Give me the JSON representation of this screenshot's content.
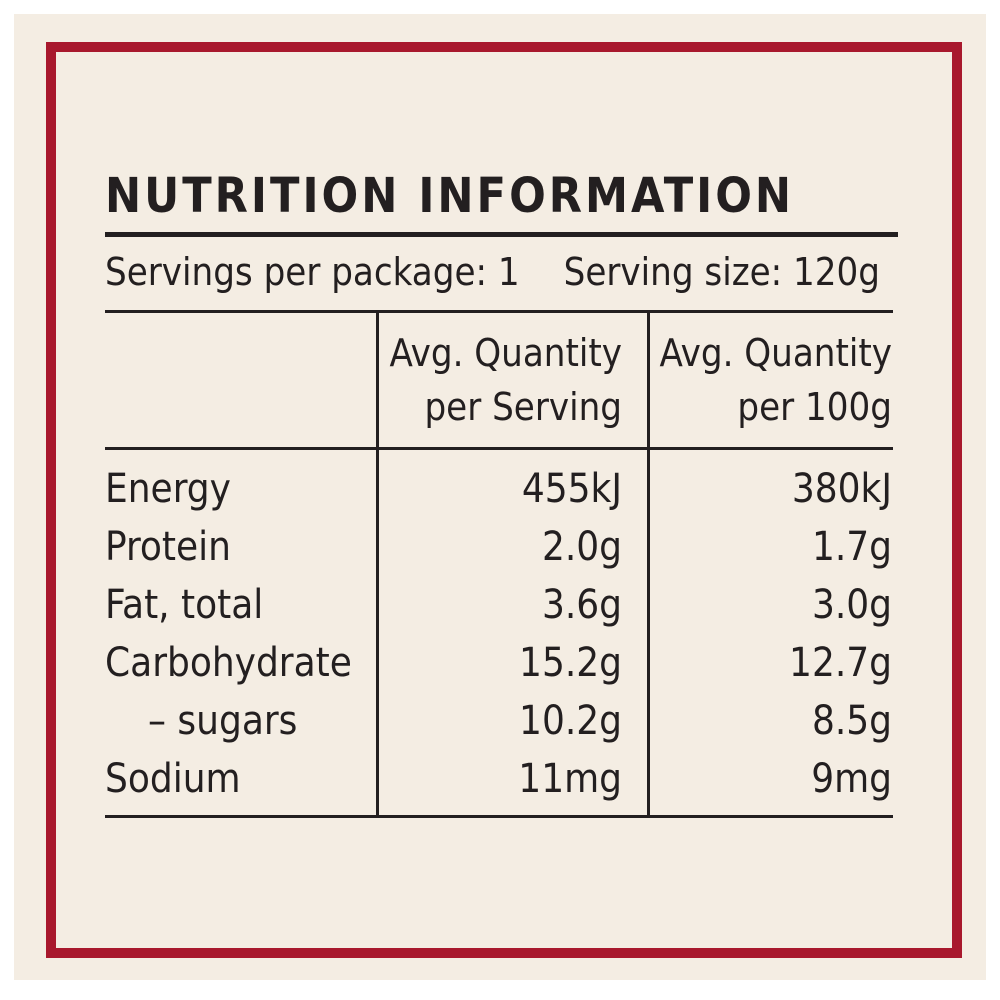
{
  "header": {
    "title": "NUTRITION INFORMATION"
  },
  "servings": {
    "per_package": "Servings per package: 1",
    "size": "Serving size: 120g"
  },
  "table": {
    "columns": [
      "",
      "Avg. Quantity\nper Serving",
      "Avg. Quantity\nper 100g"
    ],
    "rows": [
      [
        "Energy",
        "455kJ",
        "380kJ"
      ],
      [
        "Protein",
        "2.0g",
        "1.7g"
      ],
      [
        "Fat, total",
        "3.6g",
        "3.0g"
      ],
      [
        "Carbohydrate",
        "15.2g",
        "12.7g"
      ],
      [
        "– sugars",
        "10.2g",
        "8.5g"
      ],
      [
        "Sodium",
        "11mg",
        "9mg"
      ]
    ]
  }
}
